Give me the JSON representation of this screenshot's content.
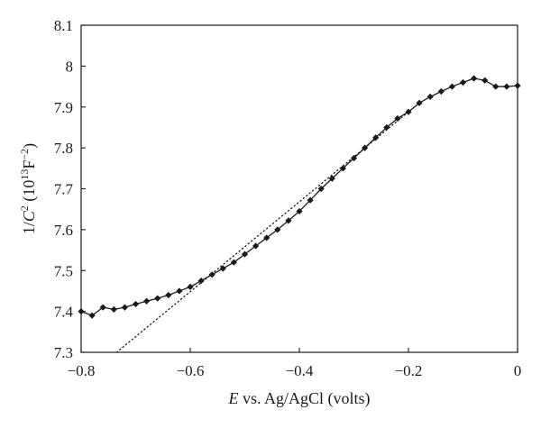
{
  "chart_data": {
    "type": "line",
    "title": "",
    "xlabel": {
      "italic_part": "E",
      "rest": " vs. Ag/AgCl (volts)"
    },
    "ylabel": {
      "prefix": "1/",
      "italic_part": "C",
      "sup1": "2",
      "open": " (10",
      "sup2": "13",
      "unit": "F",
      "sup3": "−2",
      "close": ")"
    },
    "xlim": [
      -0.8,
      0.0
    ],
    "ylim": [
      7.3,
      8.1
    ],
    "x_ticks": [
      -0.8,
      -0.6,
      -0.4,
      -0.2,
      0.0
    ],
    "x_tick_labels": [
      "−0.8",
      "−0.6",
      "−0.4",
      "−0.2",
      "0"
    ],
    "y_ticks": [
      7.3,
      7.4,
      7.5,
      7.6,
      7.7,
      7.8,
      7.9,
      8.0,
      8.1
    ],
    "y_tick_labels": [
      "7.3",
      "7.4",
      "7.5",
      "7.6",
      "7.7",
      "7.8",
      "7.9",
      "8",
      "8.1"
    ],
    "grid": false,
    "series": [
      {
        "style": "solid-line-with-diamond-markers",
        "color": "#1a1a1a",
        "x": [
          -0.8,
          -0.78,
          -0.76,
          -0.74,
          -0.72,
          -0.7,
          -0.68,
          -0.66,
          -0.64,
          -0.62,
          -0.6,
          -0.58,
          -0.56,
          -0.54,
          -0.52,
          -0.5,
          -0.48,
          -0.46,
          -0.44,
          -0.42,
          -0.4,
          -0.38,
          -0.36,
          -0.34,
          -0.32,
          -0.3,
          -0.28,
          -0.26,
          -0.24,
          -0.22,
          -0.2,
          -0.18,
          -0.16,
          -0.14,
          -0.12,
          -0.1,
          -0.08,
          -0.06,
          -0.04,
          -0.02,
          0.0
        ],
        "y": [
          7.4,
          7.39,
          7.41,
          7.405,
          7.41,
          7.418,
          7.425,
          7.432,
          7.44,
          7.45,
          7.46,
          7.475,
          7.49,
          7.505,
          7.52,
          7.54,
          7.56,
          7.58,
          7.6,
          7.622,
          7.645,
          7.672,
          7.7,
          7.725,
          7.75,
          7.775,
          7.8,
          7.825,
          7.85,
          7.872,
          7.888,
          7.91,
          7.925,
          7.938,
          7.95,
          7.96,
          7.97,
          7.965,
          7.95,
          7.95,
          7.952
        ]
      },
      {
        "style": "dotted-fit-line",
        "color": "#1a1a1a",
        "x": [
          -0.735,
          -0.2
        ],
        "y": [
          7.3,
          7.888
        ]
      }
    ]
  }
}
